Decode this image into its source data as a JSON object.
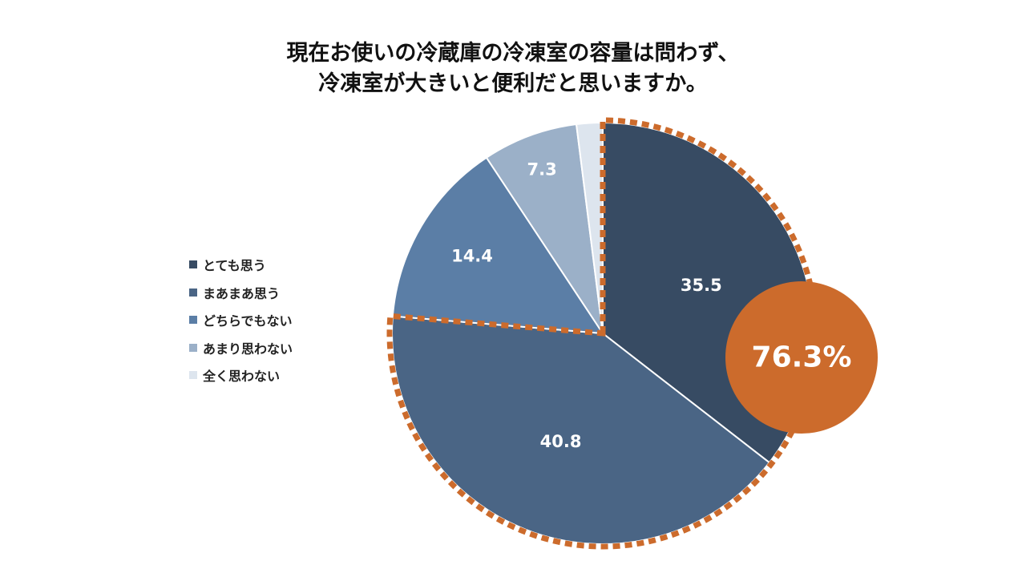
{
  "title_lines": [
    "現在お使いの冷蔵庫の冷凍室の容量は問わず、",
    "冷凍室が大きいと便利だと思いますか。"
  ],
  "chart_data": {
    "type": "pie",
    "labels": [
      "とても思う",
      "まあまあ思う",
      "どちらでもない",
      "あまり思わない",
      "全く思わない"
    ],
    "values": [
      35.5,
      40.8,
      14.4,
      7.3,
      2.0
    ],
    "data_labels": [
      "35.5",
      "40.8",
      "14.4",
      "7.3",
      ""
    ],
    "colors": [
      "#374b63",
      "#4a6585",
      "#5b7ea6",
      "#9bb0c8",
      "#dde5ee"
    ],
    "label_color": "#ffffff",
    "legend_position": "left",
    "highlight": {
      "text": "76.3%",
      "covers": [
        "とても思う",
        "まあまあ思う"
      ],
      "color": "#cc6b2c"
    }
  }
}
